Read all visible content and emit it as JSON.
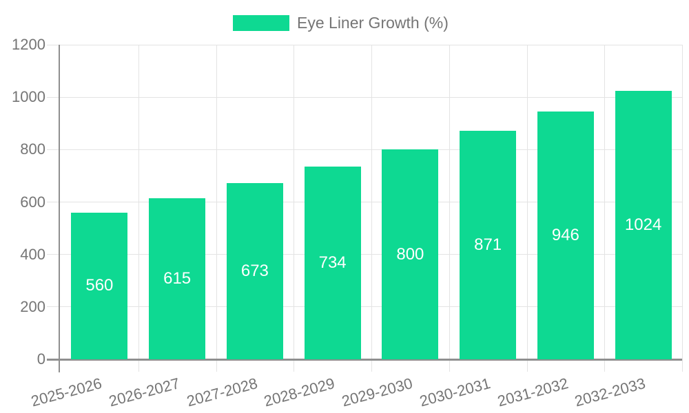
{
  "chart_data": {
    "type": "bar",
    "title": "",
    "categories": [
      "2025-2026",
      "2026-2027",
      "2027-2028",
      "2028-2029",
      "2029-2030",
      "2030-2031",
      "2031-2032",
      "2032-2033"
    ],
    "series": [
      {
        "name": "Eye Liner Growth (%)",
        "values": [
          560,
          615,
          673,
          734,
          800,
          871,
          946,
          1024
        ]
      }
    ],
    "xlabel": "",
    "ylabel": "",
    "ylim": [
      0,
      1200
    ],
    "yticks": [
      0,
      200,
      400,
      600,
      800,
      1000,
      1200
    ],
    "grid": true,
    "legend_position": "top-center",
    "value_labels": "inside-center",
    "x_tick_rotation_deg": -15,
    "colors": {
      "bar": "#0ed992",
      "value_label": "#ffffff",
      "axis_text": "#757575",
      "grid_line": "#e3e3e3",
      "axis_line": "#8f8f8f",
      "background": "#ffffff"
    }
  }
}
